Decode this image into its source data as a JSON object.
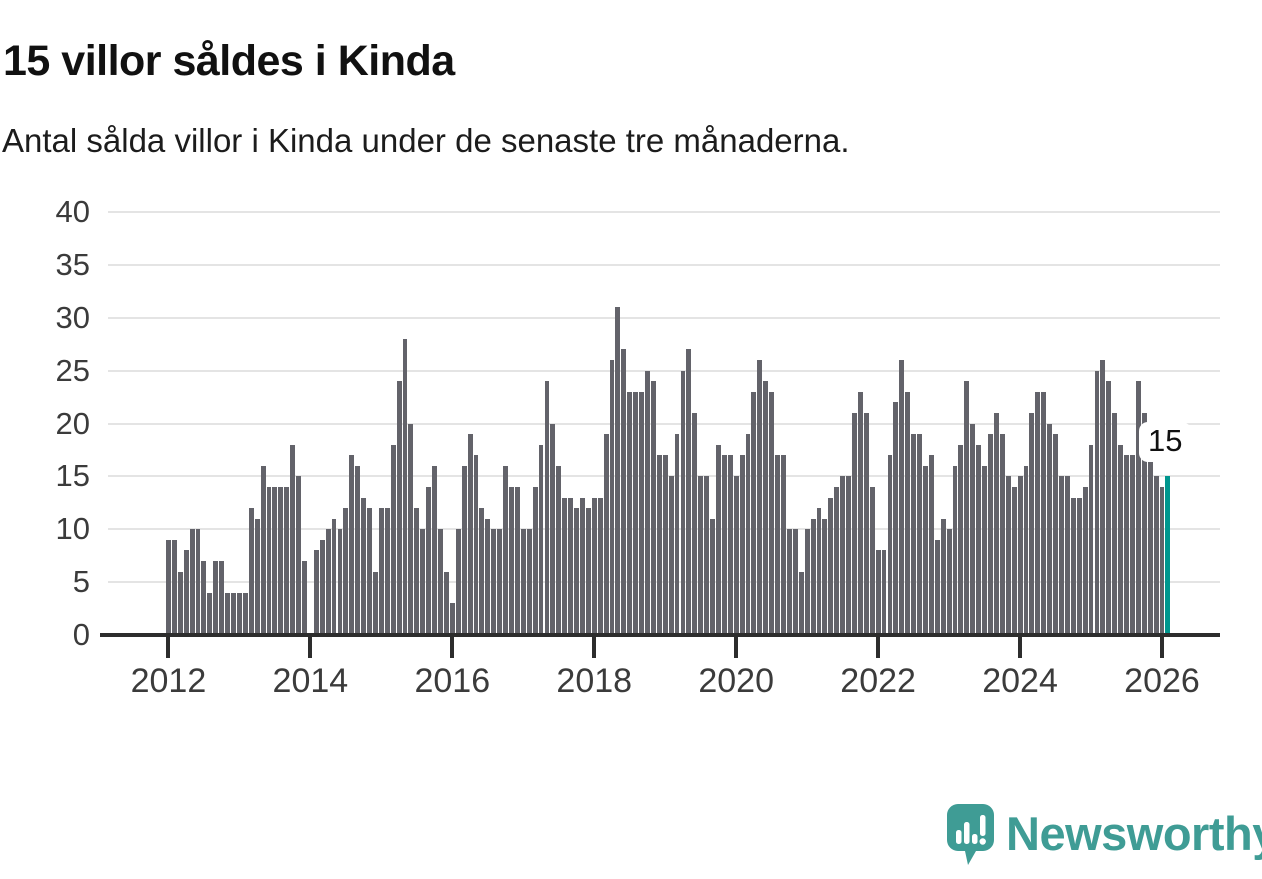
{
  "header": {
    "title": "15 villor såldes i Kinda",
    "subtitle": "Antal sålda villor i Kinda under de senaste tre månaderna."
  },
  "annotation": {
    "last_value_label": "15"
  },
  "footer": {
    "brand": "Newsworthy",
    "logo_icon": "newsworthy-speech-bubble-bar-chart-icon"
  },
  "colors": {
    "bar": "#63636a",
    "bar_highlight": "#00968e",
    "grid": "#e4e4e4",
    "axis": "#2d2d2d",
    "text": "#111111",
    "brand": "#3f9c95"
  },
  "chart_data": {
    "type": "bar",
    "title": "15 villor såldes i Kinda",
    "subtitle": "Antal sålda villor i Kinda under de senaste tre månaderna.",
    "xlabel": "",
    "ylabel": "",
    "frequency": "monthly",
    "x_start": "2012-01",
    "x_end": "2026-02",
    "ylim": [
      0,
      40
    ],
    "grid": true,
    "legend": "none",
    "yticks": [
      0,
      5,
      10,
      15,
      20,
      25,
      30,
      35,
      40
    ],
    "xticks": [
      "2012",
      "2014",
      "2016",
      "2018",
      "2020",
      "2022",
      "2024",
      "2026"
    ],
    "xtick_month_interval": 24,
    "highlight_last_value": 15,
    "values": [
      9,
      9,
      6,
      8,
      10,
      10,
      7,
      4,
      7,
      7,
      4,
      4,
      4,
      4,
      12,
      11,
      16,
      14,
      14,
      14,
      14,
      18,
      15,
      7,
      0,
      8,
      9,
      10,
      11,
      10,
      12,
      17,
      16,
      13,
      12,
      6,
      12,
      12,
      18,
      24,
      28,
      20,
      12,
      10,
      14,
      16,
      10,
      6,
      3,
      10,
      16,
      19,
      17,
      12,
      11,
      10,
      10,
      16,
      14,
      14,
      10,
      10,
      14,
      18,
      24,
      20,
      16,
      13,
      13,
      12,
      13,
      12,
      13,
      13,
      19,
      26,
      31,
      27,
      23,
      23,
      23,
      25,
      24,
      17,
      17,
      15,
      19,
      25,
      27,
      21,
      15,
      15,
      11,
      18,
      17,
      17,
      15,
      17,
      19,
      23,
      26,
      24,
      23,
      17,
      17,
      10,
      10,
      6,
      10,
      11,
      12,
      11,
      13,
      14,
      15,
      15,
      21,
      23,
      21,
      14,
      8,
      8,
      17,
      22,
      26,
      23,
      19,
      19,
      16,
      17,
      9,
      11,
      10,
      16,
      18,
      24,
      20,
      18,
      16,
      19,
      21,
      19,
      15,
      14,
      15,
      16,
      21,
      23,
      23,
      20,
      19,
      15,
      15,
      13,
      13,
      14,
      18,
      25,
      26,
      24,
      21,
      18,
      17,
      17,
      24,
      21,
      19,
      15,
      14,
      15
    ]
  }
}
